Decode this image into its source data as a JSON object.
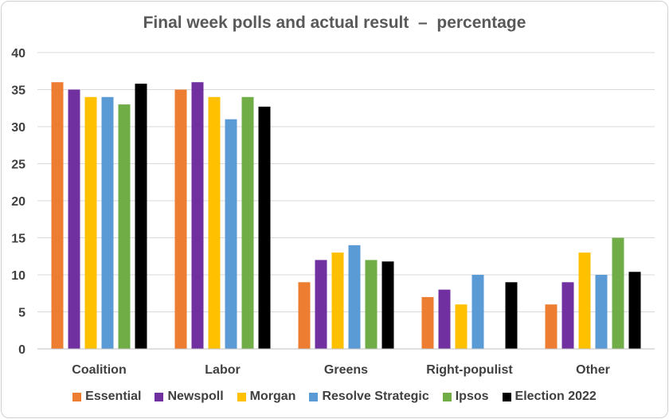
{
  "chart_data": {
    "type": "bar",
    "title": "Final week polls and actual result  –  percentage",
    "xlabel": "",
    "ylabel": "",
    "ylim": [
      0,
      40
    ],
    "yticks": [
      0,
      5,
      10,
      15,
      20,
      25,
      30,
      35,
      40
    ],
    "grid": true,
    "legend_position": "bottom",
    "categories": [
      "Coalition",
      "Labor",
      "Greens",
      "Right-populist",
      "Other"
    ],
    "series": [
      {
        "name": "Essential",
        "color": "#ed7d31",
        "values": [
          36,
          35,
          9,
          7,
          6
        ]
      },
      {
        "name": "Newspoll",
        "color": "#7030a0",
        "values": [
          35,
          36,
          12,
          8,
          9
        ]
      },
      {
        "name": "Morgan",
        "color": "#ffc000",
        "values": [
          34,
          34,
          13,
          6,
          13
        ]
      },
      {
        "name": "Resolve Strategic",
        "color": "#5b9bd5",
        "values": [
          34,
          31,
          14,
          10,
          10
        ]
      },
      {
        "name": "Ipsos",
        "color": "#70ad47",
        "values": [
          33,
          34,
          12,
          null,
          15
        ]
      },
      {
        "name": "Election 2022",
        "color": "#000000",
        "values": [
          35.8,
          32.7,
          11.8,
          9,
          10.4
        ]
      }
    ]
  }
}
